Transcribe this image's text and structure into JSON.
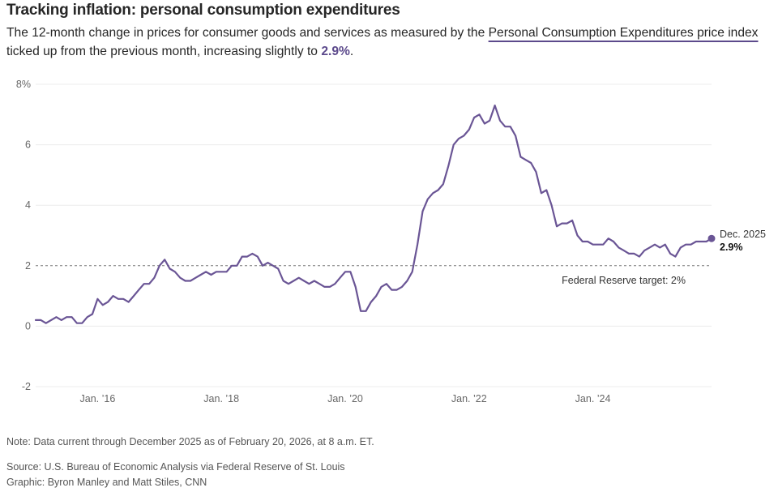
{
  "header": {
    "title": "Tracking inflation: personal consumption expenditures",
    "subtitle_pre": "The 12-month change in prices for consumer goods and services as measured by the ",
    "subtitle_link": "Personal Consumption Expenditures price index",
    "subtitle_mid": " ticked up from the previous month, increasing slightly to ",
    "subtitle_value": "2.9%",
    "subtitle_post": "."
  },
  "chart_data": {
    "type": "line",
    "title": "Tracking inflation: personal consumption expenditures",
    "xlabel": "",
    "ylabel": "",
    "ylim": [
      -2,
      8
    ],
    "y_ticks": [
      {
        "value": 8,
        "label": "8%"
      },
      {
        "value": 6,
        "label": "6"
      },
      {
        "value": 4,
        "label": "4"
      },
      {
        "value": 2,
        "label": "2"
      },
      {
        "value": 0,
        "label": "0"
      },
      {
        "value": -2,
        "label": "-2"
      }
    ],
    "x_ticks": [
      {
        "date": "2016-01",
        "label": "Jan. ’16"
      },
      {
        "date": "2018-01",
        "label": "Jan. ’18"
      },
      {
        "date": "2020-01",
        "label": "Jan. ’20"
      },
      {
        "date": "2022-01",
        "label": "Jan. ’22"
      },
      {
        "date": "2024-01",
        "label": "Jan. ’24"
      }
    ],
    "xlim": [
      "2015-01",
      "2025-12"
    ],
    "grid": true,
    "series": [
      {
        "color": "#6a5595",
        "points": [
          [
            "2015-01",
            0.2
          ],
          [
            "2015-02",
            0.2
          ],
          [
            "2015-03",
            0.1
          ],
          [
            "2015-04",
            0.2
          ],
          [
            "2015-05",
            0.3
          ],
          [
            "2015-06",
            0.2
          ],
          [
            "2015-07",
            0.3
          ],
          [
            "2015-08",
            0.3
          ],
          [
            "2015-09",
            0.1
          ],
          [
            "2015-10",
            0.1
          ],
          [
            "2015-11",
            0.3
          ],
          [
            "2015-12",
            0.4
          ],
          [
            "2016-01",
            0.9
          ],
          [
            "2016-02",
            0.7
          ],
          [
            "2016-03",
            0.8
          ],
          [
            "2016-04",
            1.0
          ],
          [
            "2016-05",
            0.9
          ],
          [
            "2016-06",
            0.9
          ],
          [
            "2016-07",
            0.8
          ],
          [
            "2016-08",
            1.0
          ],
          [
            "2016-09",
            1.2
          ],
          [
            "2016-10",
            1.4
          ],
          [
            "2016-11",
            1.4
          ],
          [
            "2016-12",
            1.6
          ],
          [
            "2017-01",
            2.0
          ],
          [
            "2017-02",
            2.2
          ],
          [
            "2017-03",
            1.9
          ],
          [
            "2017-04",
            1.8
          ],
          [
            "2017-05",
            1.6
          ],
          [
            "2017-06",
            1.5
          ],
          [
            "2017-07",
            1.5
          ],
          [
            "2017-08",
            1.6
          ],
          [
            "2017-09",
            1.7
          ],
          [
            "2017-10",
            1.8
          ],
          [
            "2017-11",
            1.7
          ],
          [
            "2017-12",
            1.8
          ],
          [
            "2018-01",
            1.8
          ],
          [
            "2018-02",
            1.8
          ],
          [
            "2018-03",
            2.0
          ],
          [
            "2018-04",
            2.0
          ],
          [
            "2018-05",
            2.3
          ],
          [
            "2018-06",
            2.3
          ],
          [
            "2018-07",
            2.4
          ],
          [
            "2018-08",
            2.3
          ],
          [
            "2018-09",
            2.0
          ],
          [
            "2018-10",
            2.1
          ],
          [
            "2018-11",
            2.0
          ],
          [
            "2018-12",
            1.9
          ],
          [
            "2019-01",
            1.5
          ],
          [
            "2019-02",
            1.4
          ],
          [
            "2019-03",
            1.5
          ],
          [
            "2019-04",
            1.6
          ],
          [
            "2019-05",
            1.5
          ],
          [
            "2019-06",
            1.4
          ],
          [
            "2019-07",
            1.5
          ],
          [
            "2019-08",
            1.4
          ],
          [
            "2019-09",
            1.3
          ],
          [
            "2019-10",
            1.3
          ],
          [
            "2019-11",
            1.4
          ],
          [
            "2019-12",
            1.6
          ],
          [
            "2020-01",
            1.8
          ],
          [
            "2020-02",
            1.8
          ],
          [
            "2020-03",
            1.3
          ],
          [
            "2020-04",
            0.5
          ],
          [
            "2020-05",
            0.5
          ],
          [
            "2020-06",
            0.8
          ],
          [
            "2020-07",
            1.0
          ],
          [
            "2020-08",
            1.3
          ],
          [
            "2020-09",
            1.4
          ],
          [
            "2020-10",
            1.2
          ],
          [
            "2020-11",
            1.2
          ],
          [
            "2020-12",
            1.3
          ],
          [
            "2021-01",
            1.5
          ],
          [
            "2021-02",
            1.8
          ],
          [
            "2021-03",
            2.7
          ],
          [
            "2021-04",
            3.8
          ],
          [
            "2021-05",
            4.2
          ],
          [
            "2021-06",
            4.4
          ],
          [
            "2021-07",
            4.5
          ],
          [
            "2021-08",
            4.7
          ],
          [
            "2021-09",
            5.3
          ],
          [
            "2021-10",
            6.0
          ],
          [
            "2021-11",
            6.2
          ],
          [
            "2021-12",
            6.3
          ],
          [
            "2022-01",
            6.5
          ],
          [
            "2022-02",
            6.9
          ],
          [
            "2022-03",
            7.0
          ],
          [
            "2022-04",
            6.7
          ],
          [
            "2022-05",
            6.8
          ],
          [
            "2022-06",
            7.3
          ],
          [
            "2022-07",
            6.8
          ],
          [
            "2022-08",
            6.6
          ],
          [
            "2022-09",
            6.6
          ],
          [
            "2022-10",
            6.3
          ],
          [
            "2022-11",
            5.6
          ],
          [
            "2022-12",
            5.5
          ],
          [
            "2023-01",
            5.4
          ],
          [
            "2023-02",
            5.1
          ],
          [
            "2023-03",
            4.4
          ],
          [
            "2023-04",
            4.5
          ],
          [
            "2023-05",
            4.0
          ],
          [
            "2023-06",
            3.3
          ],
          [
            "2023-07",
            3.4
          ],
          [
            "2023-08",
            3.4
          ],
          [
            "2023-09",
            3.5
          ],
          [
            "2023-10",
            3.0
          ],
          [
            "2023-11",
            2.8
          ],
          [
            "2023-12",
            2.8
          ],
          [
            "2024-01",
            2.7
          ],
          [
            "2024-02",
            2.7
          ],
          [
            "2024-03",
            2.7
          ],
          [
            "2024-04",
            2.9
          ],
          [
            "2024-05",
            2.8
          ],
          [
            "2024-06",
            2.6
          ],
          [
            "2024-07",
            2.5
          ],
          [
            "2024-08",
            2.4
          ],
          [
            "2024-09",
            2.4
          ],
          [
            "2024-10",
            2.3
          ],
          [
            "2024-11",
            2.5
          ],
          [
            "2024-12",
            2.6
          ],
          [
            "2025-01",
            2.7
          ],
          [
            "2025-02",
            2.6
          ],
          [
            "2025-03",
            2.7
          ],
          [
            "2025-04",
            2.4
          ],
          [
            "2025-05",
            2.3
          ],
          [
            "2025-06",
            2.6
          ],
          [
            "2025-07",
            2.7
          ],
          [
            "2025-08",
            2.7
          ],
          [
            "2025-09",
            2.8
          ],
          [
            "2025-10",
            2.8
          ],
          [
            "2025-11",
            2.8
          ],
          [
            "2025-12",
            2.9
          ]
        ]
      }
    ],
    "reference_line": {
      "value": 2,
      "label": "Federal Reserve target: 2%",
      "style": "dashed"
    },
    "end_label": {
      "date_label": "Dec. 2025",
      "value_label": "2.9%"
    }
  },
  "footer": {
    "note": "Note: Data current through December 2025 as of February 20, 2026, at 8 a.m. ET.",
    "source": "Source: U.S. Bureau of Economic Analysis via Federal Reserve of St. Louis",
    "graphic": "Graphic: Byron Manley and Matt Stiles, CNN"
  }
}
